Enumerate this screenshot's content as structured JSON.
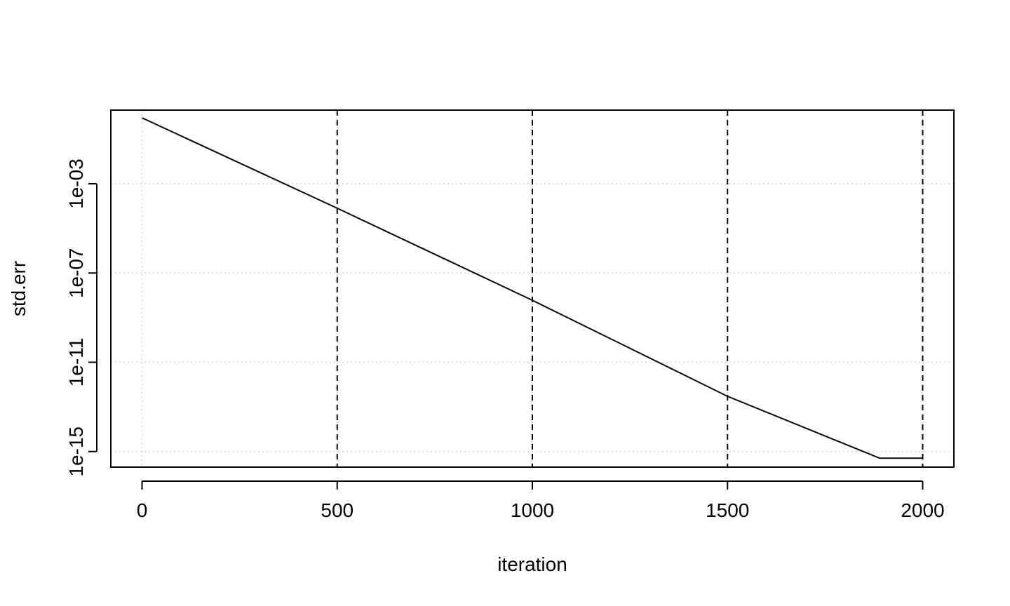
{
  "chart_data": {
    "type": "line",
    "title": "",
    "xlabel": "iteration",
    "ylabel": "std.err",
    "y_scale": "log",
    "xlim": [
      -80,
      2080
    ],
    "ylim": [
      2e-16,
      2
    ],
    "x_ticks": [
      0,
      500,
      1000,
      1500,
      2000
    ],
    "x_tick_labels": [
      "0",
      "500",
      "1000",
      "1500",
      "2000"
    ],
    "y_ticks": [
      0.001,
      1e-07,
      1e-11,
      1e-15
    ],
    "y_tick_labels": [
      "1e-03",
      "1e-07",
      "1e-11",
      "1e-15"
    ],
    "grid": true,
    "vertical_reference_lines": [
      500,
      1000,
      1500,
      2000
    ],
    "series": [
      {
        "x": [
          0,
          500,
          1000,
          1500,
          1890,
          2000
        ],
        "y": [
          0.9,
          8e-05,
          6e-09,
          3e-13,
          5e-16,
          5e-16
        ]
      }
    ],
    "colors": {
      "line": "#000000",
      "grid": "#d3d3d3",
      "ref_line": "#000000"
    }
  }
}
